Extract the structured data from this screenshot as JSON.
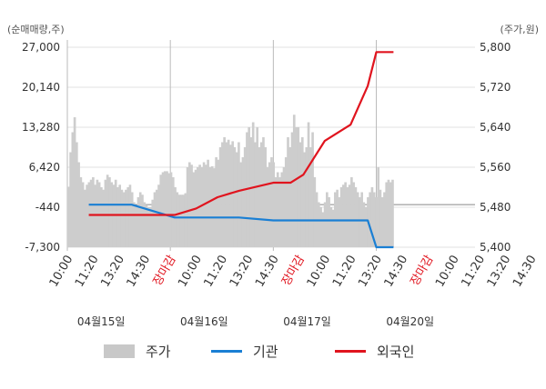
{
  "chart_data": {
    "type": "area",
    "left_unit": "(순매매량,주)",
    "right_unit": "(주가,원)",
    "left_axis": {
      "ticks": [
        "27,000",
        "20,140",
        "13,280",
        "6,420",
        "-440",
        "-7,300"
      ],
      "min": -7300,
      "max": 27000
    },
    "right_axis": {
      "ticks": [
        "5,800",
        "5,720",
        "5,640",
        "5,560",
        "5,480",
        "5,400"
      ],
      "min": 5400,
      "max": 5800
    },
    "x_tick_labels": [
      "10:00",
      "11:20",
      "13:20",
      "14:30",
      "장마감",
      "10:00",
      "11:20",
      "13:20",
      "14:30",
      "장마감",
      "10:00",
      "11:20",
      "13:20",
      "14:30",
      "장마감",
      "10:00",
      "11:20",
      "13:20",
      "14:30"
    ],
    "x_tick_colors": [
      "#333333",
      "#333333",
      "#333333",
      "#333333",
      "#e0141e",
      "#333333",
      "#333333",
      "#333333",
      "#333333",
      "#e0141e",
      "#333333",
      "#333333",
      "#333333",
      "#333333",
      "#e0141e",
      "#333333",
      "#333333",
      "#333333",
      "#333333"
    ],
    "dates": [
      "04월15일",
      "04월16일",
      "04월17일",
      "04월20일"
    ],
    "legend": [
      {
        "label": "주가",
        "color": "#c8c8c8",
        "kind": "area"
      },
      {
        "label": "기관",
        "color": "#1a7fd4",
        "kind": "line"
      },
      {
        "label": "외국인",
        "color": "#e0141e",
        "kind": "line"
      }
    ],
    "price_series": {
      "name": "주가",
      "values": [
        5521,
        5590,
        5630,
        5660,
        5610,
        5570,
        5540,
        5530,
        5515,
        5525,
        5530,
        5535,
        5540,
        5525,
        5535,
        5530,
        5520,
        5515,
        5535,
        5545,
        5540,
        5530,
        5525,
        5535,
        5520,
        5525,
        5515,
        5510,
        5515,
        5520,
        5525,
        5510,
        5490,
        5480,
        5500,
        5510,
        5505,
        5490,
        5485,
        5480,
        5480,
        5495,
        5510,
        5515,
        5525,
        5545,
        5550,
        5552,
        5552,
        5548,
        5550,
        5540,
        5520,
        5510,
        5505,
        5505,
        5505,
        5508,
        5560,
        5570,
        5565,
        5550,
        5555,
        5560,
        5565,
        5560,
        5570,
        5565,
        5575,
        5560,
        5562,
        5558,
        5580,
        5575,
        5600,
        5610,
        5620,
        5610,
        5615,
        5605,
        5612,
        5600,
        5590,
        5610,
        5570,
        5580,
        5600,
        5630,
        5640,
        5620,
        5650,
        5610,
        5640,
        5600,
        5610,
        5620,
        5600,
        5560,
        5570,
        5580,
        5570,
        5540,
        5550,
        5540,
        5550,
        5560,
        5580,
        5620,
        5600,
        5630,
        5665,
        5640,
        5640,
        5610,
        5620,
        5590,
        5600,
        5650,
        5600,
        5630,
        5540,
        5510,
        5490,
        5480,
        5470,
        5490,
        5510,
        5500,
        5480,
        5475,
        5510,
        5515,
        5500,
        5520,
        5525,
        5530,
        5520,
        5525,
        5540,
        5530,
        5520,
        5510,
        5500,
        5510,
        5490,
        5480,
        5500,
        5510,
        5520,
        5510,
        5500,
        5560,
        5515,
        5500,
        5510,
        5530,
        5535,
        5530,
        5535
      ],
      "start_slot": 0,
      "end_slot": 76
    },
    "institution_series": {
      "name": "기관",
      "points": [
        [
          5,
          0
        ],
        [
          15,
          0
        ],
        [
          25,
          -2200
        ],
        [
          40,
          -2200
        ],
        [
          48,
          -2700
        ],
        [
          70,
          -2700
        ],
        [
          72,
          -7300
        ],
        [
          76,
          -7300
        ]
      ]
    },
    "foreign_series": {
      "name": "외국인",
      "points": [
        [
          5,
          0
        ],
        [
          15,
          0
        ],
        [
          25,
          0
        ],
        [
          30,
          2000
        ],
        [
          35,
          5500
        ],
        [
          40,
          7500
        ],
        [
          48,
          10000
        ],
        [
          52,
          10000
        ],
        [
          55,
          12500
        ],
        [
          60,
          23000
        ],
        [
          66,
          28000
        ],
        [
          70,
          40000
        ],
        [
          72,
          50500
        ],
        [
          76,
          50500
        ]
      ]
    },
    "foreign_scale": {
      "min": -10000,
      "max": 52000
    }
  }
}
